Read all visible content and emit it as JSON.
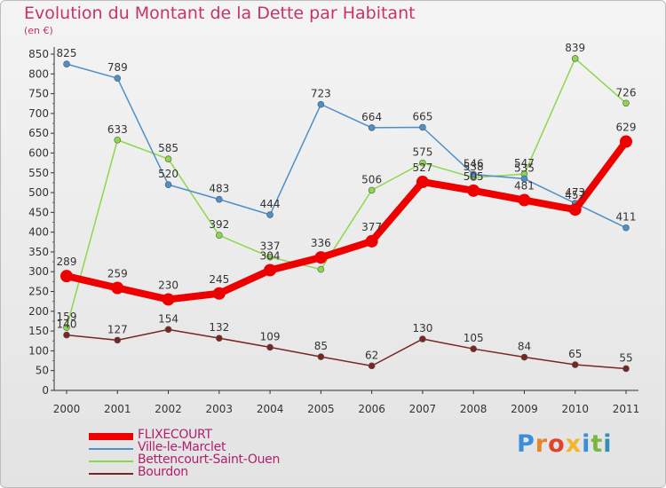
{
  "title": "Evolution du Montant de la Dette par Habitant",
  "subtitle": "(en €)",
  "logo": {
    "text": "Proxiti",
    "letter_colors": [
      "#3a8fd8",
      "#e5862a",
      "#e0452b",
      "#f2b52b",
      "#3a8fd8",
      "#7ab642",
      "#2f8fb5"
    ]
  },
  "chart_data": {
    "type": "line",
    "title": "Evolution du Montant de la Dette par Habitant",
    "subtitle": "(en €)",
    "x": [
      "2000",
      "2001",
      "2002",
      "2003",
      "2004",
      "2005",
      "2006",
      "2007",
      "2008",
      "2009",
      "2010",
      "2011"
    ],
    "ylim": [
      0,
      850
    ],
    "yticks": [
      0,
      50,
      100,
      150,
      200,
      250,
      300,
      350,
      400,
      450,
      500,
      550,
      600,
      650,
      700,
      750,
      800,
      850
    ],
    "grid": false,
    "legend_position": "bottom-left",
    "series": [
      {
        "name": "FLIXECOURT",
        "color": "#ee0000",
        "emphasis": true,
        "values": [
          289,
          259,
          230,
          245,
          304,
          336,
          377,
          527,
          505,
          481,
          457,
          629
        ]
      },
      {
        "name": "Ville-le-Marclet",
        "color": "#4d8fc8",
        "values": [
          825,
          789,
          520,
          483,
          444,
          723,
          664,
          665,
          546,
          535,
          473,
          411
        ]
      },
      {
        "name": "Bettencourt-Saint-Ouen",
        "color": "#8cd84a",
        "values": [
          159,
          633,
          585,
          392,
          337,
          306,
          506,
          575,
          538,
          547,
          839,
          726
        ]
      },
      {
        "name": "Bourdon",
        "color": "#7a2424",
        "values": [
          140,
          127,
          154,
          132,
          109,
          85,
          62,
          130,
          105,
          84,
          65,
          55
        ]
      }
    ],
    "data_labels": {
      "FLIXECOURT": [
        "289",
        "259",
        "230",
        "245",
        "304",
        "336",
        "377",
        "527",
        "505",
        "481",
        "457",
        "629"
      ],
      "Ville-le-Marclet": [
        "825",
        "789",
        "520",
        "483",
        "444",
        "723",
        "664",
        "665",
        "546",
        "535",
        "473",
        "411"
      ],
      "Bettencourt-Saint-Ouen": [
        "159",
        "633",
        "585",
        "392",
        "337",
        "",
        "506",
        "575",
        "538",
        "547",
        "839",
        "726"
      ],
      "Bourdon": [
        "140",
        "127",
        "154",
        "132",
        "109",
        "85",
        "62",
        "130",
        "105",
        "84",
        "65",
        "55"
      ]
    }
  }
}
